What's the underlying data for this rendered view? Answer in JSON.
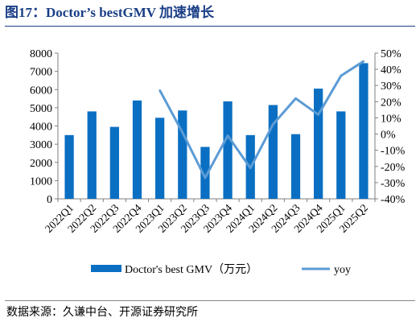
{
  "figure": {
    "title": "图17：Doctor’s bestGMV 加速增长",
    "source": "数据来源：久谦中台、开源证券研究所"
  },
  "chart_data": {
    "type": "bar+line",
    "categories": [
      "2022Q1",
      "2022Q2",
      "2022Q3",
      "2022Q4",
      "2023Q1",
      "2023Q2",
      "2023Q3",
      "2023Q4",
      "2024Q1",
      "2024Q2",
      "2024Q3",
      "2024Q4",
      "2025Q1",
      "2025Q2"
    ],
    "series": [
      {
        "name": "Doctor's best GMV（万元）",
        "type": "bar",
        "axis": "left",
        "values": [
          3500,
          4800,
          3950,
          5400,
          4450,
          4850,
          2850,
          5350,
          3500,
          5150,
          3550,
          6050,
          4800,
          7450
        ]
      },
      {
        "name": "yoy",
        "type": "line",
        "axis": "right",
        "values": [
          null,
          null,
          null,
          null,
          27,
          1,
          -27,
          -1,
          -21,
          6,
          22,
          12,
          36,
          45
        ]
      }
    ],
    "y_left": {
      "min": 0,
      "max": 8000,
      "ticks": [
        0,
        1000,
        2000,
        3000,
        4000,
        5000,
        6000,
        7000,
        8000
      ]
    },
    "y_right": {
      "min": -40,
      "max": 50,
      "ticks": [
        -40,
        -30,
        -20,
        -10,
        0,
        10,
        20,
        30,
        40,
        50
      ],
      "unit": "%"
    },
    "legend_position": "bottom",
    "grid": false,
    "colors": {
      "bar": "#0a6fc2",
      "line": "#5b9bd5"
    }
  }
}
